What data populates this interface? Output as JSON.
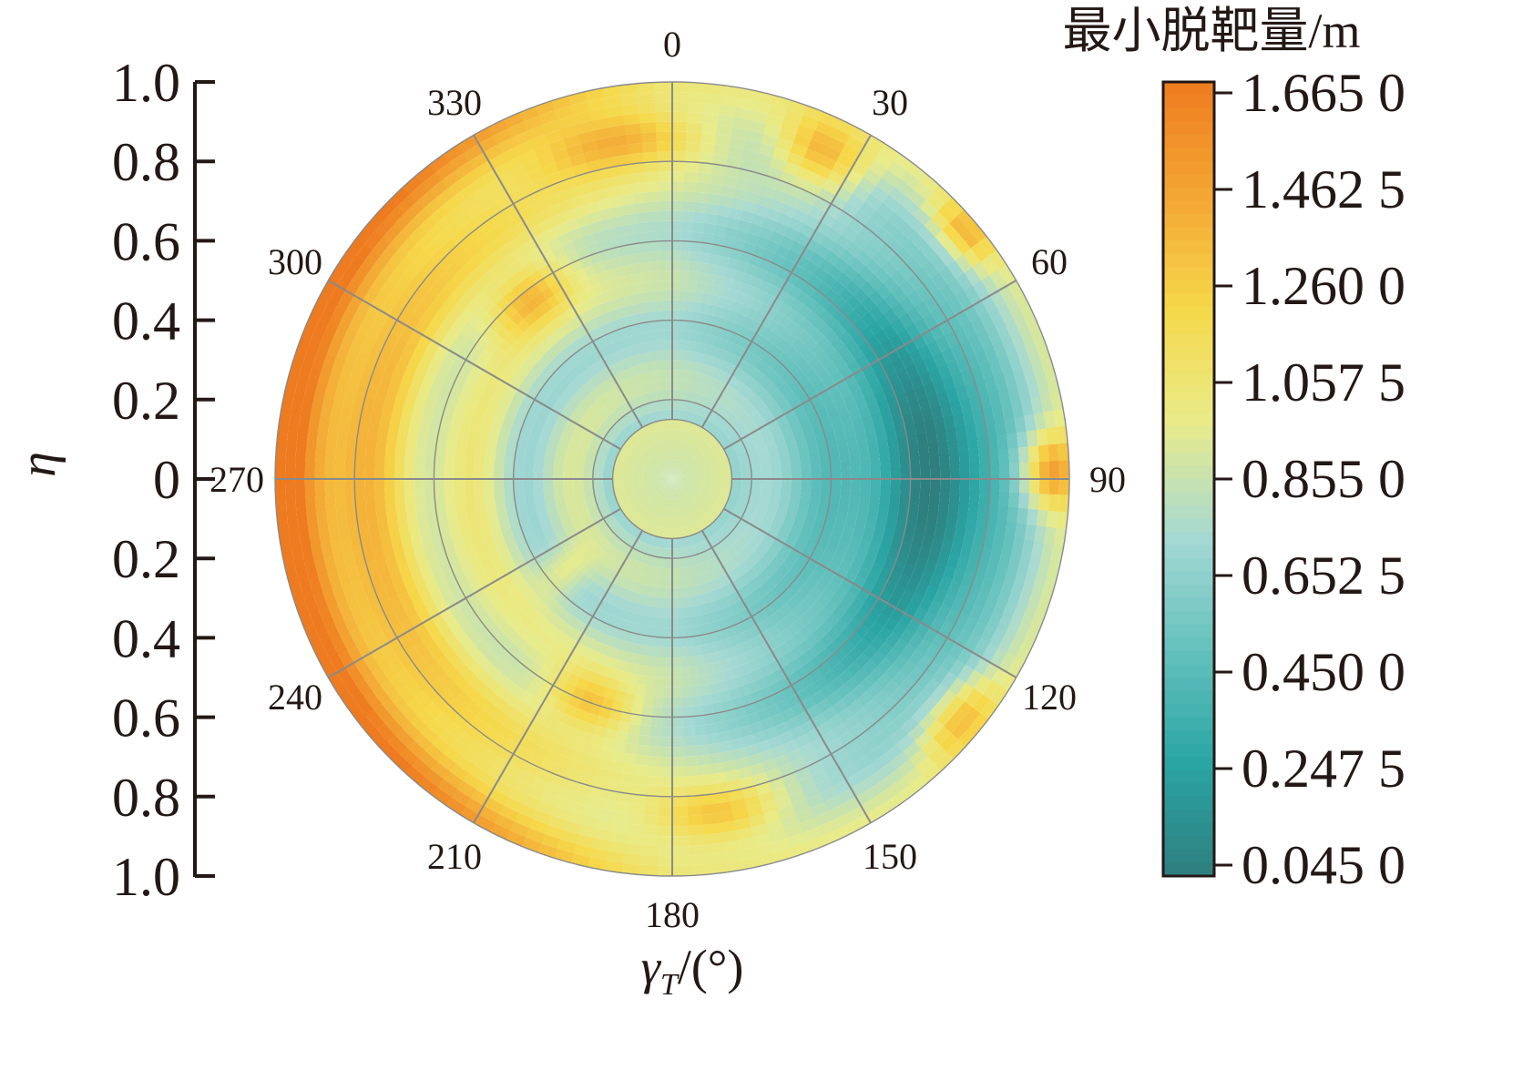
{
  "chart_data": {
    "type": "heatmap",
    "subtype": "polar-contour",
    "theta_axis": {
      "title_var": "γ",
      "title_sub": "T",
      "title_rest": "/(°)",
      "ticks": [
        "0",
        "30",
        "60",
        "90",
        "120",
        "150",
        "180",
        "210",
        "240",
        "270",
        "300",
        "330"
      ],
      "clockwise_from_top": true
    },
    "radial_axis": {
      "title": "η",
      "ticks_upper": [
        "1.0",
        "0.8",
        "0.6",
        "0.4",
        "0.2",
        "0"
      ],
      "ticks_lower": [
        "0.2",
        "0.4",
        "0.6",
        "0.8",
        "1.0"
      ],
      "range": [
        0,
        1.0
      ],
      "grid_rings": [
        0.2,
        0.4,
        0.6,
        0.8,
        1.0
      ]
    },
    "colorbar": {
      "title": "最小脱靶量/m",
      "ticks": [
        "1.665 0",
        "1.462 5",
        "1.260 0",
        "1.057 5",
        "0.855 0",
        "0.652 5",
        "0.450 0",
        "0.247 5",
        "0.045 0"
      ],
      "range": [
        0.045,
        1.665
      ],
      "colors": [
        "#2e7f7e",
        "#2aa5a4",
        "#65c1bd",
        "#a6d9d3",
        "#e8eb8a",
        "#f6d84a",
        "#f3a634",
        "#ee7b1f"
      ]
    },
    "field_description_note": null
  },
  "colors": {
    "text": "#231815",
    "grid": "#8a8a8a"
  }
}
